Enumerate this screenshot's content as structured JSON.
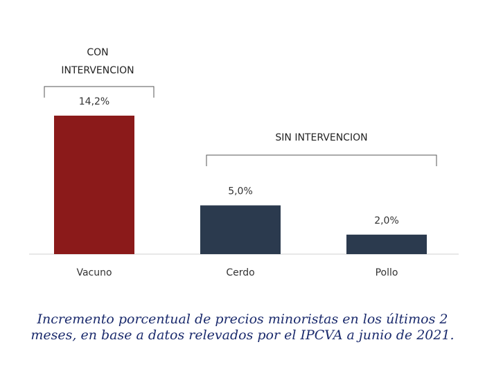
{
  "chart_data": {
    "type": "bar",
    "categories": [
      "Vacuno",
      "Cerdo",
      "Pollo"
    ],
    "values": [
      14.2,
      5.0,
      2.0
    ],
    "value_labels": [
      "14,2%",
      "5,0%",
      "2,0%"
    ],
    "colors": [
      "#8b1a1a",
      "#2b3a4e",
      "#2b3a4e"
    ],
    "groups": [
      {
        "label": "CON INTERVENCION",
        "label_lines": [
          "CON",
          "INTERVENCION"
        ],
        "categories": [
          "Vacuno"
        ]
      },
      {
        "label": "SIN INTERVENCION",
        "label_lines": [
          "SIN INTERVENCION"
        ],
        "categories": [
          "Cerdo",
          "Pollo"
        ]
      }
    ],
    "ylim": [
      0,
      14.2
    ],
    "grid": false,
    "title": "",
    "xlabel": "",
    "ylabel": ""
  },
  "caption": "Incremento porcentual de precios minoristas en los últimos 2 meses, en base a datos relevados por el IPCVA a junio de 2021."
}
